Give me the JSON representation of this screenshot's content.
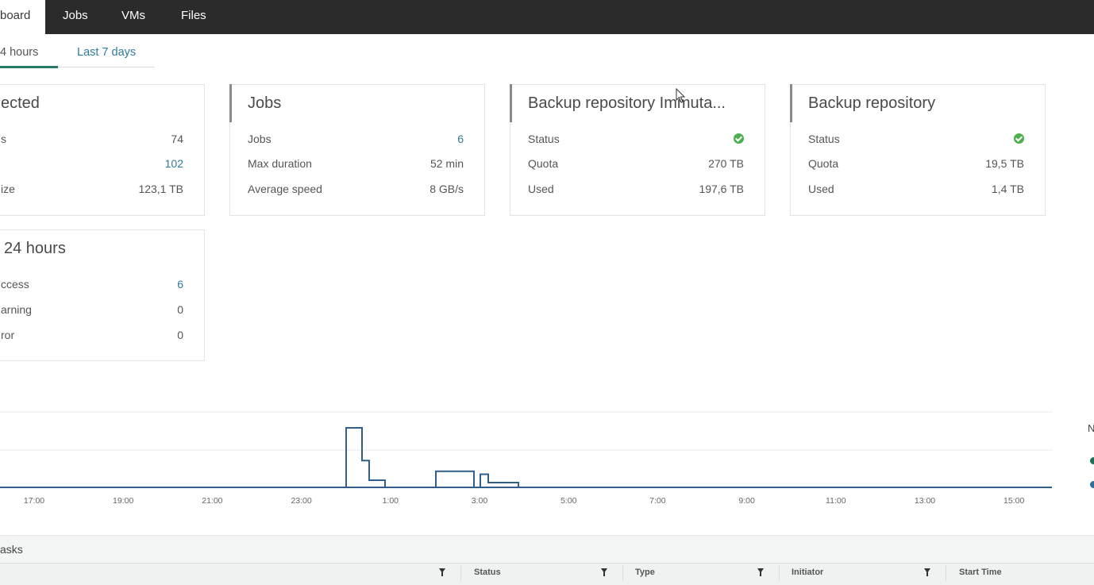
{
  "nav": {
    "tabs": [
      {
        "label": "board",
        "active": true
      },
      {
        "label": "Jobs"
      },
      {
        "label": "VMs"
      },
      {
        "label": "Files"
      }
    ]
  },
  "period_tabs": [
    {
      "label": "4 hours",
      "active": true
    },
    {
      "label": "Last 7 days"
    }
  ],
  "cards": {
    "protected": {
      "title": "ected",
      "rows": [
        {
          "key": "s",
          "value": "74"
        },
        {
          "key": "",
          "value": "102"
        },
        {
          "key": "ize",
          "value": "123,1 TB"
        }
      ]
    },
    "jobs": {
      "title": "Jobs",
      "rows": [
        {
          "key": "Jobs",
          "value": "6"
        },
        {
          "key": "Max duration",
          "value": "52 min"
        },
        {
          "key": "Average speed",
          "value": "8 GB/s"
        }
      ]
    },
    "repo_immutable": {
      "title": "Backup repository Immuta...",
      "rows": [
        {
          "key": "Status",
          "value_icon": "ok-status-icon"
        },
        {
          "key": "Quota",
          "value": "270 TB"
        },
        {
          "key": "Used",
          "value": "197,6 TB"
        }
      ]
    },
    "repo": {
      "title": "Backup repository",
      "rows": [
        {
          "key": "Status",
          "value_icon": "ok-status-icon"
        },
        {
          "key": "Quota",
          "value": "19,5 TB"
        },
        {
          "key": "Used",
          "value": "1,4 TB"
        }
      ]
    },
    "last24": {
      "title": "24 hours",
      "rows": [
        {
          "key": "ccess",
          "value": "6"
        },
        {
          "key": "arning",
          "value": "0"
        },
        {
          "key": "ror",
          "value": "0"
        }
      ]
    }
  },
  "chart_data": {
    "type": "line",
    "x_labels": [
      "17:00",
      "19:00",
      "21:00",
      "23:00",
      "1:00",
      "3:00",
      "5:00",
      "7:00",
      "9:00",
      "11:00",
      "13:00",
      "15:00"
    ],
    "series": [
      {
        "color": "#2f5f8a",
        "step_points": [
          [
            0,
            0
          ],
          [
            436,
            0
          ],
          [
            436,
            1
          ],
          [
            456,
            1
          ],
          [
            456,
            0.45
          ],
          [
            465,
            0.45
          ],
          [
            465,
            0.12
          ],
          [
            485,
            0.12
          ],
          [
            485,
            0
          ],
          [
            549,
            0
          ],
          [
            549,
            0.27
          ],
          [
            597,
            0.27
          ],
          [
            597,
            0
          ],
          [
            605,
            0
          ],
          [
            605,
            0.22
          ],
          [
            615,
            0.22
          ],
          [
            615,
            0.08
          ],
          [
            653,
            0.08
          ],
          [
            653,
            0
          ],
          [
            1325,
            0
          ]
        ]
      }
    ],
    "legend_partial": "N",
    "legend_colors": [
      "#1f6e5a",
      "#2f6e9a"
    ],
    "grid": true
  },
  "tasks": {
    "title": "asks",
    "columns": [
      "Status",
      "Type",
      "Initiator",
      "Start Time"
    ]
  }
}
